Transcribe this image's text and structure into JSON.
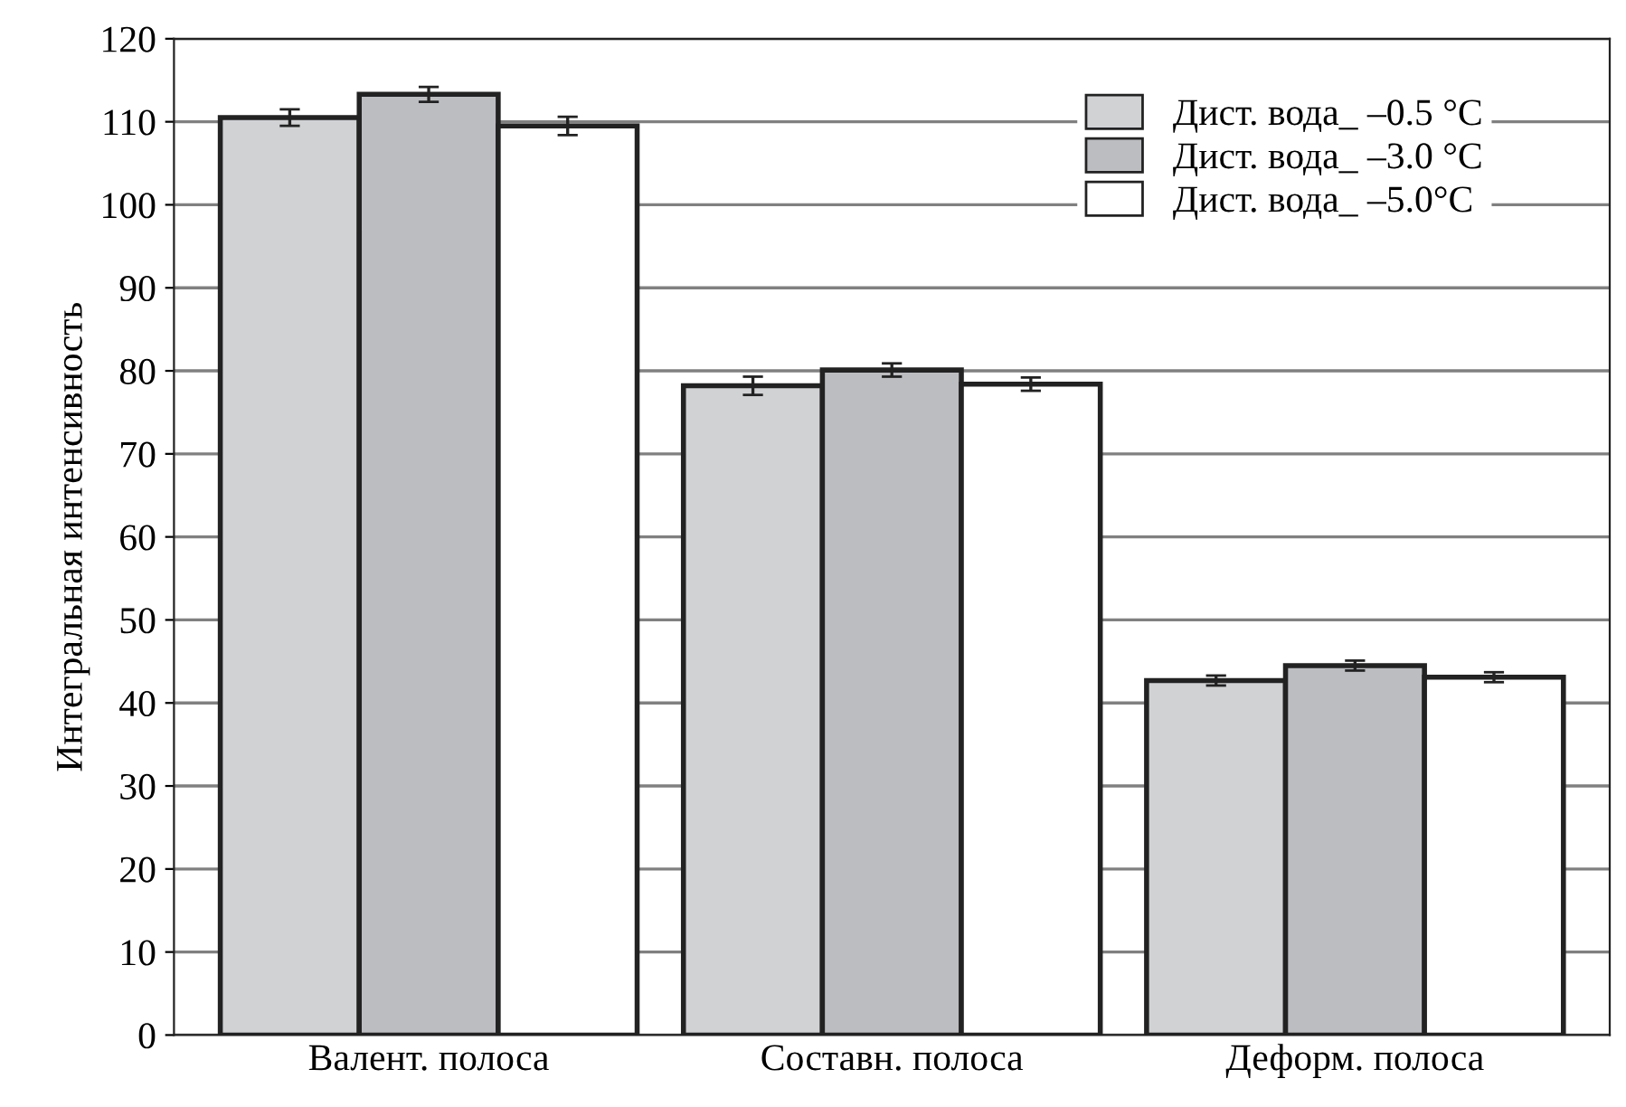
{
  "chart_data": {
    "type": "bar",
    "ylabel": "Интегральная интенсивность",
    "categories": [
      "Валент. полоса",
      "Составн. полоса",
      "Деформ. полоса"
    ],
    "series": [
      {
        "name": "Дист. вода_ –0.5 °C",
        "color": "#d1d2d4",
        "values": [
          110.5,
          78.2,
          42.7
        ],
        "errors": [
          1.0,
          1.1,
          0.6
        ]
      },
      {
        "name": "Дист. вода_ –3.0 °C",
        "color": "#bcbdc1",
        "values": [
          113.3,
          80.1,
          44.5
        ],
        "errors": [
          0.9,
          0.8,
          0.6
        ]
      },
      {
        "name": "Дист. вода_ –5.0°C",
        "color": "#ffffff",
        "values": [
          109.5,
          78.4,
          43.1
        ],
        "errors": [
          1.1,
          0.8,
          0.6
        ]
      }
    ],
    "ylim": [
      0,
      120
    ],
    "yticks": [
      0,
      10,
      20,
      30,
      40,
      50,
      60,
      70,
      80,
      90,
      100,
      110,
      120
    ],
    "grid": "y",
    "legend": "top right"
  }
}
